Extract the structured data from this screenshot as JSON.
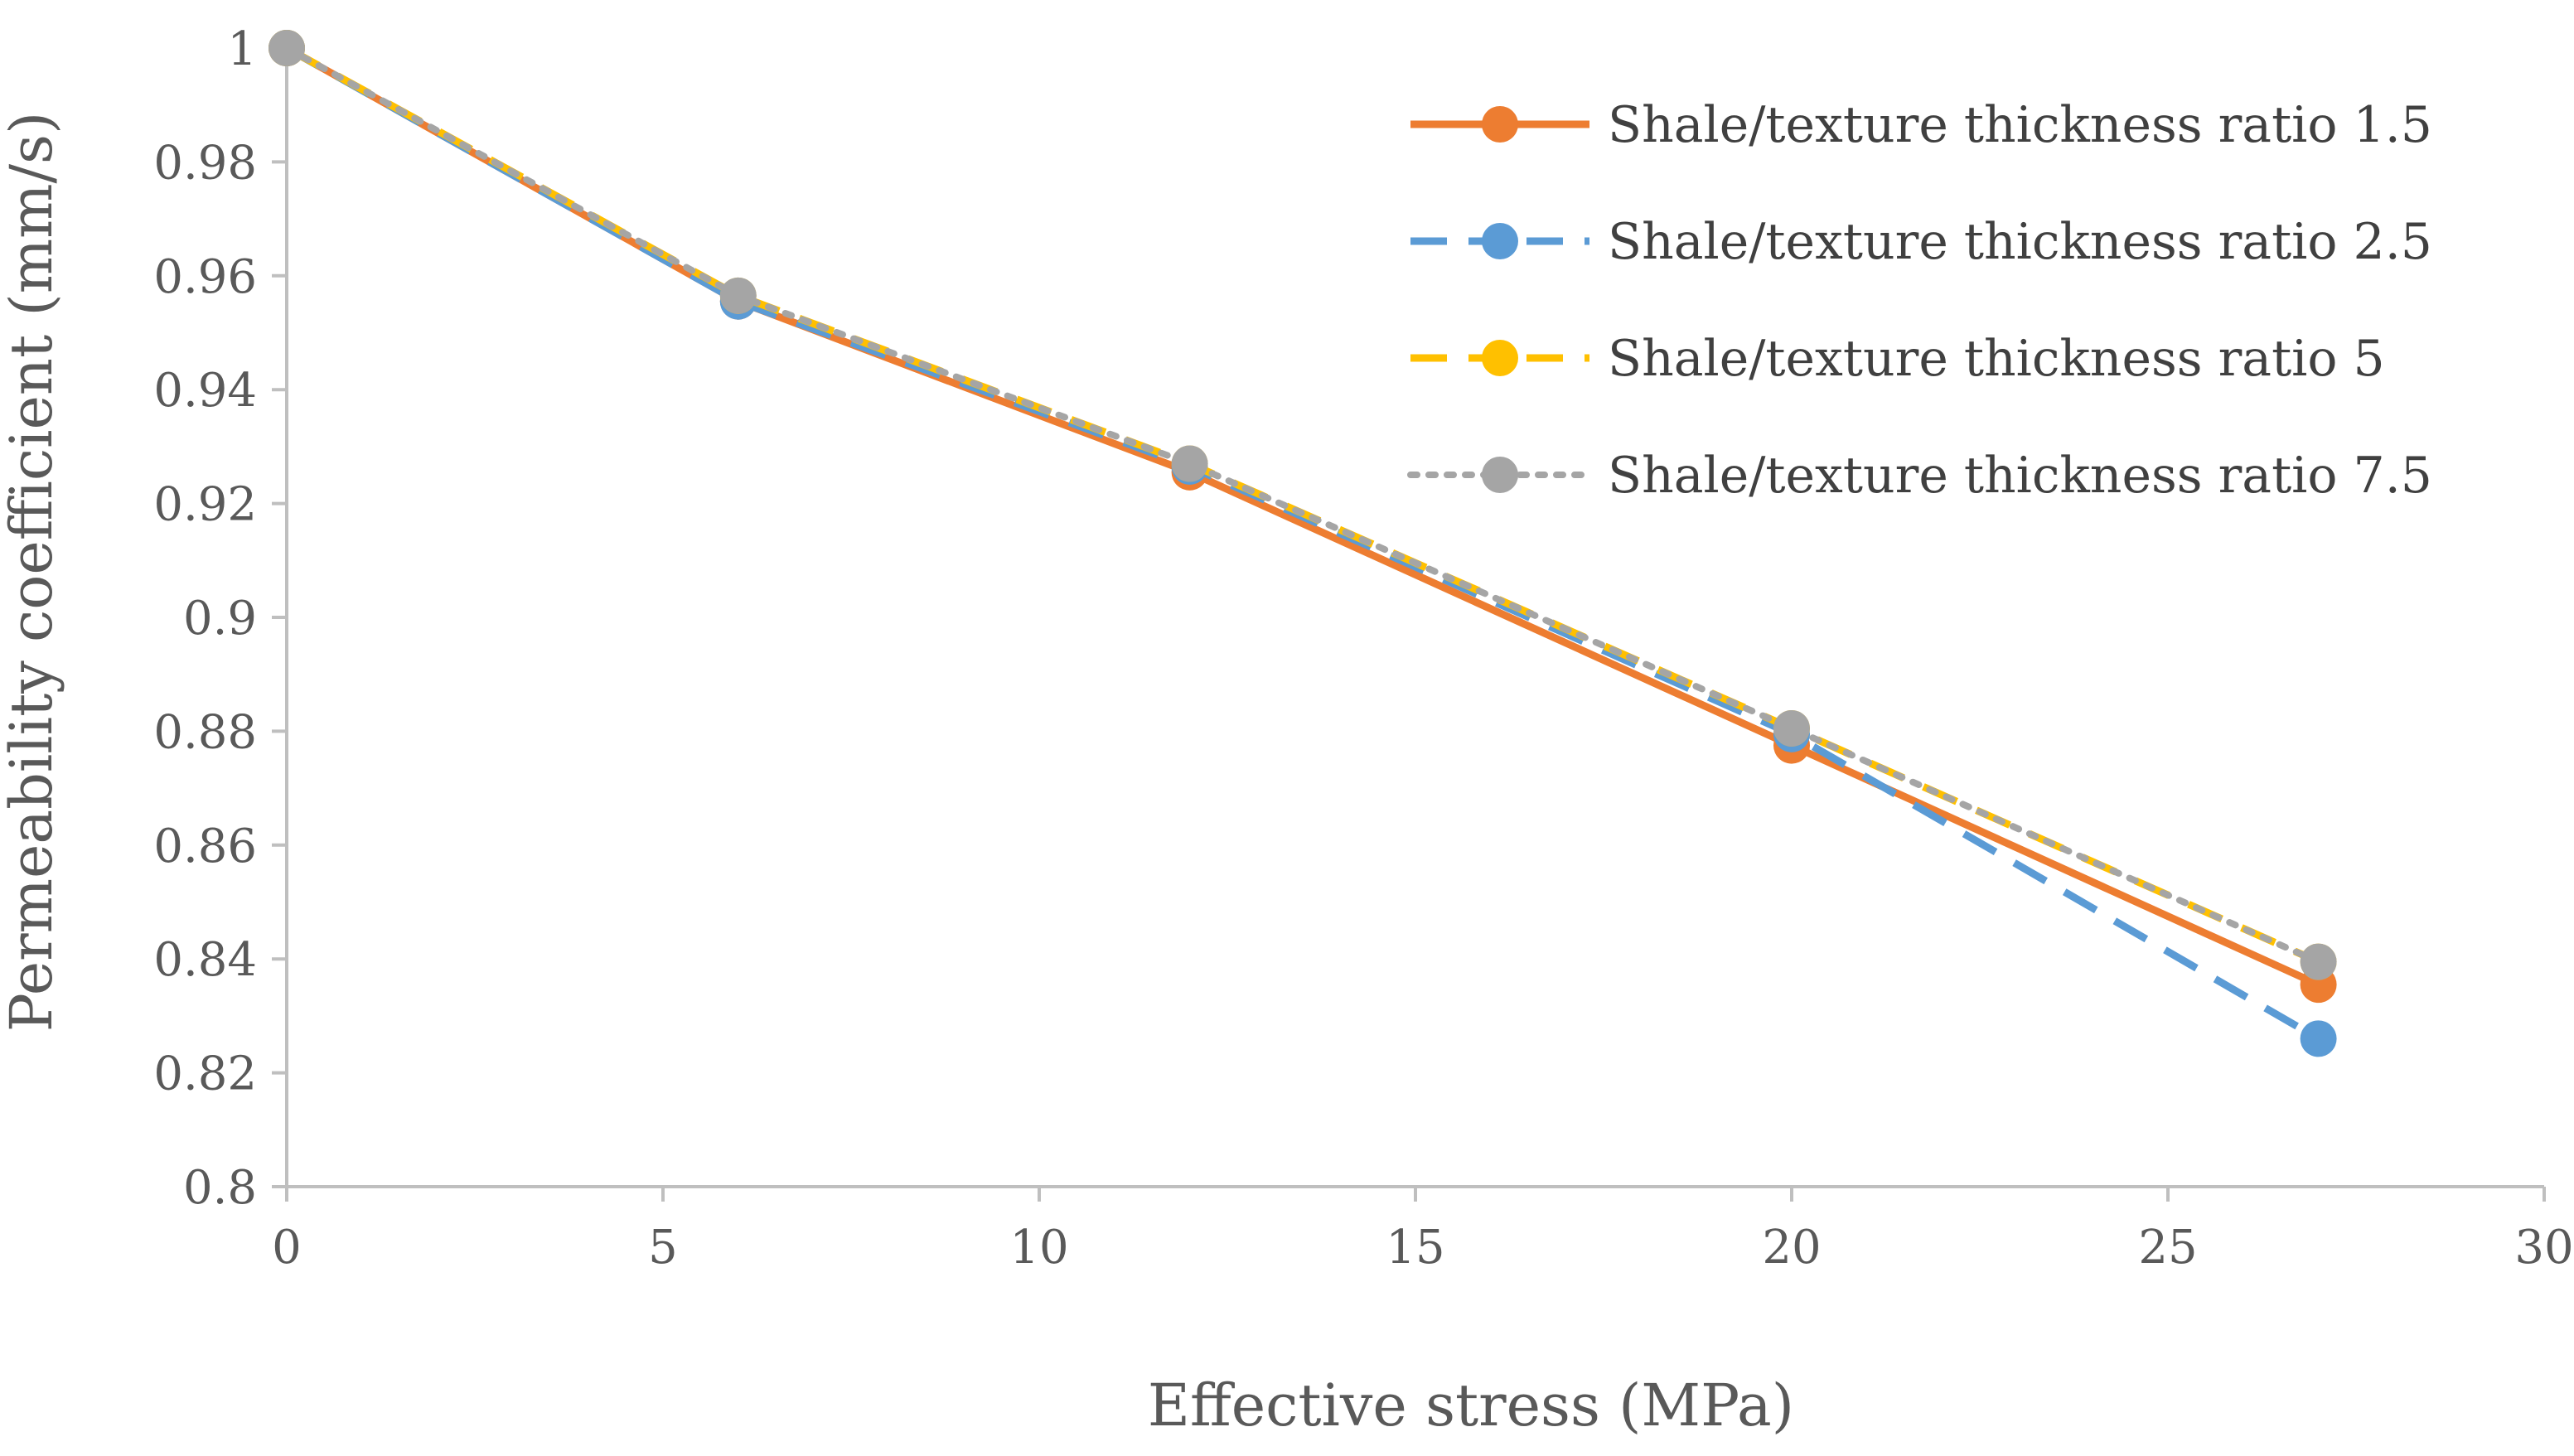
{
  "chart_data": {
    "type": "line",
    "title": "",
    "xlabel": "Effective stress (MPa)",
    "ylabel": "Permeability coefficient (mm/s)",
    "xlim": [
      0,
      30
    ],
    "ylim": [
      0.8,
      1
    ],
    "x_ticks": [
      0,
      5,
      10,
      15,
      20,
      25,
      30
    ],
    "x_tick_labels": [
      "0",
      "5",
      "10",
      "15",
      "20",
      "25",
      "30"
    ],
    "y_ticks": [
      0.8,
      0.82,
      0.84,
      0.86,
      0.88,
      0.9,
      0.92,
      0.94,
      0.96,
      0.98,
      1
    ],
    "y_tick_labels": [
      "0.8",
      "0.82",
      "0.84",
      "0.86",
      "0.88",
      "0.9",
      "0.92",
      "0.94",
      "0.96",
      "0.98",
      "1"
    ],
    "grid": false,
    "legend_position": "top-right",
    "x": [
      0,
      6,
      12,
      20,
      27
    ],
    "series": [
      {
        "name": "Shale/texture thickness ratio 1.5",
        "values": [
          1.0,
          0.9555,
          0.9255,
          0.8775,
          0.8355
        ],
        "color": "#ED7D31",
        "line_style": "solid"
      },
      {
        "name": "Shale/texture thickness ratio 2.5",
        "values": [
          1.0,
          0.9555,
          0.9265,
          0.8795,
          0.826
        ],
        "color": "#5B9BD5",
        "line_style": "dashed"
      },
      {
        "name": "Shale/texture thickness ratio 5",
        "values": [
          1.0,
          0.9565,
          0.927,
          0.8805,
          0.8395
        ],
        "color": "#FFC000",
        "line_style": "dashed"
      },
      {
        "name": "Shale/texture thickness ratio 7.5",
        "values": [
          1.0,
          0.9565,
          0.927,
          0.8805,
          0.8395
        ],
        "color": "#A5A5A5",
        "line_style": "dotted"
      }
    ],
    "axis_color": "#BFBFBF"
  }
}
